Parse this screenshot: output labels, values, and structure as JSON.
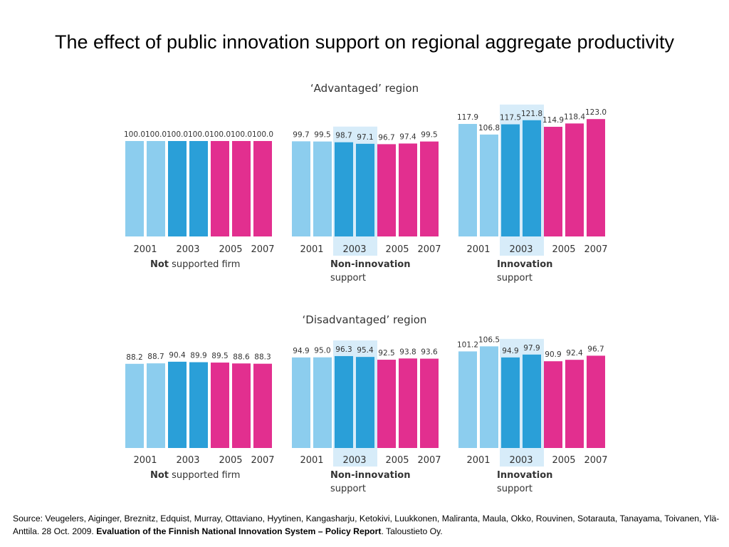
{
  "title": "The effect of public innovation support on regional aggregate productivity",
  "colors": {
    "light_blue": "#8ccdee",
    "dark_blue": "#2a9fd8",
    "pink": "#e22f8f",
    "highlight": "#d7ecf9",
    "text": "#333333"
  },
  "panel_labels": [
    {
      "bold": "Not",
      "rest": " supported firm",
      "second_line": ""
    },
    {
      "bold": "Non-innovation",
      "rest": "",
      "second_line": "support"
    },
    {
      "bold": "Innovation",
      "rest": "",
      "second_line": "support"
    }
  ],
  "highlight_tick": "2003",
  "chart_data": [
    {
      "type": "bar",
      "title": "‘Advantaged’ region",
      "categories": [
        "2001",
        "2002",
        "2003",
        "2004",
        "2005",
        "2006",
        "2007"
      ],
      "tick_labels": [
        "2001",
        "2003",
        "2005",
        "2007"
      ],
      "ylim": [
        0,
        123
      ],
      "panels": [
        {
          "label": "Not supported firm",
          "values": [
            100.0,
            100.0,
            100.0,
            100.0,
            100.0,
            100.0,
            100.0
          ],
          "value_labels": [
            "100.0",
            "100.0",
            "100.0",
            "100.0",
            "100.0",
            "100.0",
            "100.0"
          ],
          "highlight": false
        },
        {
          "label": "Non-innovation support",
          "values": [
            99.7,
            99.5,
            98.7,
            97.1,
            96.7,
            97.4,
            99.5
          ],
          "value_labels": [
            "99.7",
            "99.5",
            "98.7",
            "97.1",
            "96.7",
            "97.4",
            "99.5"
          ],
          "highlight": true
        },
        {
          "label": "Innovation support",
          "values": [
            117.9,
            106.8,
            117.5,
            121.8,
            114.9,
            118.4,
            123.0
          ],
          "value_labels": [
            "117.9",
            "106.8",
            "117.5",
            "121.8",
            "114.9",
            "118.4",
            "123.0"
          ],
          "highlight": true
        }
      ]
    },
    {
      "type": "bar",
      "title": "‘Disadvantaged’ region",
      "categories": [
        "2001",
        "2002",
        "2003",
        "2004",
        "2005",
        "2006",
        "2007"
      ],
      "tick_labels": [
        "2001",
        "2003",
        "2005",
        "2007"
      ],
      "ylim": [
        0,
        123
      ],
      "panels": [
        {
          "label": "Not supported firm",
          "values": [
            88.2,
            88.7,
            90.4,
            89.9,
            89.5,
            88.6,
            88.3
          ],
          "value_labels": [
            "88.2",
            "88.7",
            "90.4",
            "89.9",
            "89.5",
            "88.6",
            "88.3"
          ],
          "highlight": false
        },
        {
          "label": "Non-innovation support",
          "values": [
            94.9,
            95.0,
            96.3,
            95.4,
            92.5,
            93.8,
            93.6
          ],
          "value_labels": [
            "94.9",
            "95.0",
            "96.3",
            "95.4",
            "92.5",
            "93.8",
            "93.6"
          ],
          "highlight": true
        },
        {
          "label": "Innovation support",
          "values": [
            101.2,
            106.5,
            94.9,
            97.9,
            90.9,
            92.4,
            96.7
          ],
          "value_labels": [
            "101.2",
            "106.5",
            "94.9",
            "97.9",
            "90.9",
            "92.4",
            "96.7"
          ],
          "highlight": true
        }
      ]
    }
  ],
  "source": {
    "prefix": "Source: Veugelers, Aiginger, Breznitz, Edquist, Murray, Ottaviano, Hyytinen, Kangasharju, Ketokivi, Luukkonen, Maliranta, Maula, Okko, Rouvinen, Sotarauta, Tanayama, Toivanen, Ylä-Anttila. 28 Oct. 2009. ",
    "report": "Evaluation of the Finnish National Innovation System – Policy Report",
    "suffix": ". Taloustieto Oy."
  }
}
